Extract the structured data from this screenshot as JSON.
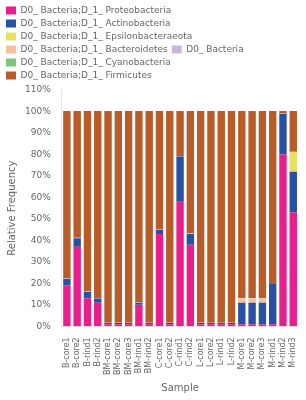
{
  "chart_data": {
    "type": "bar",
    "stacked": true,
    "grid": false,
    "legend": "top",
    "x_label": "Sample",
    "y_label": "Relative Frequency",
    "categories": [
      "B-core1",
      "B-core2",
      "B-rind1",
      "B-rind2",
      "BM-core1",
      "BM-core2",
      "BM-core3",
      "BM-rind1",
      "BM-rind2",
      "C-core1",
      "C-core2",
      "C-rind1",
      "C-rind2",
      "L-core1",
      "L-core2",
      "L-rind1",
      "L-rind2",
      "M-core1",
      "M-core2",
      "M-core3",
      "M-rind1",
      "M-rind2",
      "M-rind3"
    ],
    "series": [
      {
        "name": "D0_ Bacteria;D_1_ Proteobacteria",
        "color": "#e91e8c",
        "values": [
          0.19,
          0.37,
          0.13,
          0.11,
          0.01,
          0.01,
          0.01,
          0.1,
          0.01,
          0.43,
          0.01,
          0.58,
          0.38,
          0.01,
          0.01,
          0.01,
          0.01,
          0.01,
          0.01,
          0.01,
          0.01,
          0.8,
          0.53
        ]
      },
      {
        "name": "D0_ Bacteria;D_1_ Actinobacteria",
        "color": "#2951a3",
        "values": [
          0.03,
          0.04,
          0.03,
          0.02,
          0.005,
          0.005,
          0.005,
          0.01,
          0.005,
          0.02,
          0.005,
          0.21,
          0.05,
          0.005,
          0.005,
          0.005,
          0.005,
          0.1,
          0.1,
          0.1,
          0.19,
          0.19,
          0.19
        ]
      },
      {
        "name": "D0_ Bacteria;D_1_ Epsilonbacteraeota",
        "color": "#e8e060",
        "values": [
          0.0,
          0.0,
          0.0,
          0.0,
          0.0,
          0.0,
          0.0,
          0.0,
          0.0,
          0.0,
          0.0,
          0.0,
          0.0,
          0.0,
          0.0,
          0.0,
          0.0,
          0.0,
          0.0,
          0.0,
          0.0,
          0.0,
          0.09
        ]
      },
      {
        "name": "D0_ Bacteria;D_1_ Bacteroidetes",
        "color": "#f5c09a",
        "values": [
          0.0,
          0.0,
          0.0,
          0.0,
          0.0,
          0.0,
          0.0,
          0.0,
          0.0,
          0.0,
          0.0,
          0.0,
          0.0,
          0.0,
          0.0,
          0.0,
          0.0,
          0.02,
          0.02,
          0.02,
          0.0,
          0.0,
          0.0
        ]
      },
      {
        "name": "D0_ Bacteria",
        "color": "#c8b8d8",
        "values": [
          0.002,
          0.002,
          0.002,
          0.002,
          0.002,
          0.002,
          0.002,
          0.002,
          0.002,
          0.002,
          0.002,
          0.002,
          0.002,
          0.002,
          0.002,
          0.002,
          0.002,
          0.002,
          0.002,
          0.002,
          0.002,
          0.002,
          0.002
        ]
      },
      {
        "name": "D0_ Bacteria;D_1_ Cyanobacteria",
        "color": "#7bc87a",
        "values": [
          0.0,
          0.0,
          0.0,
          0.0,
          0.0,
          0.0,
          0.0,
          0.0,
          0.0,
          0.0,
          0.0,
          0.0,
          0.0,
          0.0,
          0.0,
          0.0,
          0.0,
          0.0,
          0.0,
          0.0,
          0.0,
          0.0,
          0.0
        ]
      },
      {
        "name": "D0_ Bacteria;D_1_ Firmicutes",
        "color": "#b85c2a",
        "values": [
          0.78,
          0.59,
          0.84,
          0.87,
          0.985,
          0.985,
          0.985,
          0.89,
          0.985,
          0.55,
          0.985,
          0.21,
          0.57,
          0.985,
          0.985,
          0.985,
          0.985,
          0.87,
          0.87,
          0.87,
          0.8,
          0.01,
          0.19
        ]
      }
    ],
    "ylim": [
      0,
      1.1
    ],
    "yticks": [
      {
        "value": 0,
        "label": "0%"
      },
      {
        "value": 0.1,
        "label": "10%"
      },
      {
        "value": 0.2,
        "label": "20%"
      },
      {
        "value": 0.3,
        "label": "30%"
      },
      {
        "value": 0.4,
        "label": "40%"
      },
      {
        "value": 0.5,
        "label": "50%"
      },
      {
        "value": 0.6,
        "label": "60%"
      },
      {
        "value": 0.7,
        "label": "70%"
      },
      {
        "value": 0.8,
        "label": "80%"
      },
      {
        "value": 0.9,
        "label": "90%"
      },
      {
        "value": 1.0,
        "label": "100%"
      },
      {
        "value": 1.1,
        "label": "110%"
      }
    ]
  }
}
